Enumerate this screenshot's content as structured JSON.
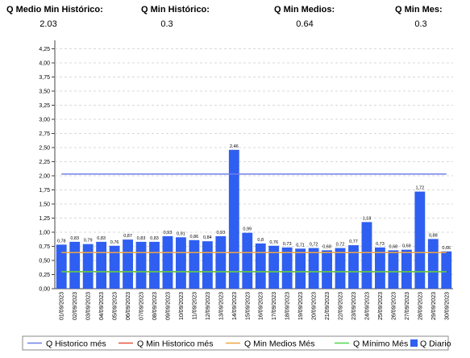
{
  "header": {
    "stats": [
      {
        "label": "Q Medio Min Histórico:",
        "value": 2.03
      },
      {
        "label": "Q Min Histórico:",
        "value": 0.3
      },
      {
        "label": "Q Min Medios:",
        "value": 0.64
      },
      {
        "label": "Q Min Mes:",
        "value": 0.3
      }
    ]
  },
  "chart_data": {
    "type": "bar",
    "categories": [
      "01/09/2023",
      "02/09/2023",
      "03/09/2023",
      "04/09/2023",
      "05/09/2023",
      "06/09/2023",
      "07/09/2023",
      "08/09/2023",
      "09/09/2023",
      "10/09/2023",
      "11/09/2023",
      "12/09/2023",
      "13/09/2023",
      "14/09/2023",
      "15/09/2023",
      "16/09/2023",
      "17/09/2023",
      "18/09/2023",
      "19/09/2023",
      "20/09/2023",
      "21/09/2023",
      "22/09/2023",
      "23/09/2023",
      "24/09/2023",
      "25/09/2023",
      "26/09/2023",
      "27/09/2023",
      "28/09/2023",
      "29/09/2023",
      "30/09/2023"
    ],
    "series": [
      {
        "name": "Q Historico més",
        "type": "line",
        "color": "#6f7fe8",
        "values": [
          2.03,
          2.03,
          2.03,
          2.03,
          2.03,
          2.03,
          2.03,
          2.03,
          2.03,
          2.03,
          2.03,
          2.03,
          2.03,
          2.03,
          2.03,
          2.03,
          2.03,
          2.03,
          2.03,
          2.03,
          2.03,
          2.03,
          2.03,
          2.03,
          2.03,
          2.03,
          2.03,
          2.03,
          2.03,
          2.03
        ]
      },
      {
        "name": "Q Min Historico més",
        "type": "line",
        "color": "#e8533a",
        "values": [
          0.3,
          0.3,
          0.3,
          0.3,
          0.3,
          0.3,
          0.3,
          0.3,
          0.3,
          0.3,
          0.3,
          0.3,
          0.3,
          0.3,
          0.3,
          0.3,
          0.3,
          0.3,
          0.3,
          0.3,
          0.3,
          0.3,
          0.3,
          0.3,
          0.3,
          0.3,
          0.3,
          0.3,
          0.3,
          0.3
        ]
      },
      {
        "name": "Q Min Medios Més",
        "type": "line",
        "color": "#f0a640",
        "values": [
          0.64,
          0.64,
          0.64,
          0.64,
          0.64,
          0.64,
          0.64,
          0.64,
          0.64,
          0.64,
          0.64,
          0.64,
          0.64,
          0.64,
          0.64,
          0.64,
          0.64,
          0.64,
          0.64,
          0.64,
          0.64,
          0.64,
          0.64,
          0.64,
          0.64,
          0.64,
          0.64,
          0.64,
          0.64,
          0.64
        ]
      },
      {
        "name": "Q Mínimo Més",
        "type": "line",
        "color": "#4fd84a",
        "values": [
          0.3,
          0.3,
          0.3,
          0.3,
          0.3,
          0.3,
          0.3,
          0.3,
          0.3,
          0.3,
          0.3,
          0.3,
          0.3,
          0.3,
          0.3,
          0.3,
          0.3,
          0.3,
          0.3,
          0.3,
          0.3,
          0.3,
          0.3,
          0.3,
          0.3,
          0.3,
          0.3,
          0.3,
          0.3,
          0.3
        ]
      },
      {
        "name": "Q Diario",
        "type": "bar",
        "color": "#2f5ff0",
        "values": [
          0.78,
          0.83,
          0.79,
          0.83,
          0.76,
          0.87,
          0.83,
          0.83,
          0.93,
          0.91,
          0.86,
          0.84,
          0.93,
          2.46,
          0.99,
          0.8,
          0.76,
          0.73,
          0.71,
          0.72,
          0.68,
          0.72,
          0.77,
          1.18,
          0.73,
          0.68,
          0.69,
          1.72,
          0.88,
          0.66
        ],
        "value_labels": [
          "0,78",
          "0,83",
          "0,79",
          "0,83",
          "0,76",
          "0,87",
          "0,83",
          "0,83",
          "0,93",
          "0,91",
          "0,86",
          "0,84",
          "0,93",
          "2,46",
          "0,99",
          "0,8",
          "0,76",
          "0,73",
          "0,71",
          "0,72",
          "0,68",
          "0,72",
          "0,77",
          "1,18",
          "0,73",
          "0,68",
          "0,69",
          "1,72",
          "0,88",
          "0,66"
        ]
      }
    ],
    "ylim": [
      0,
      4.4
    ],
    "yticks": [
      {
        "value": 0,
        "label": "0,00"
      },
      {
        "value": 0.25,
        "label": "0,25"
      },
      {
        "value": 0.5,
        "label": "0,50"
      },
      {
        "value": 0.75,
        "label": "0,75"
      },
      {
        "value": 1,
        "label": "1,00"
      },
      {
        "value": 1.25,
        "label": "1,25"
      },
      {
        "value": 1.5,
        "label": "1,50"
      },
      {
        "value": 1.75,
        "label": "1,75"
      },
      {
        "value": 2,
        "label": "2,00"
      },
      {
        "value": 2.25,
        "label": "2,25"
      },
      {
        "value": 2.5,
        "label": "2,50"
      },
      {
        "value": 2.75,
        "label": "2,75"
      },
      {
        "value": 3,
        "label": "3,00"
      },
      {
        "value": 3.25,
        "label": "3,25"
      },
      {
        "value": 3.5,
        "label": "3,50"
      },
      {
        "value": 3.75,
        "label": "3,75"
      },
      {
        "value": 4,
        "label": "4,00"
      },
      {
        "value": 4.25,
        "label": "4,25"
      }
    ],
    "grid": true
  }
}
